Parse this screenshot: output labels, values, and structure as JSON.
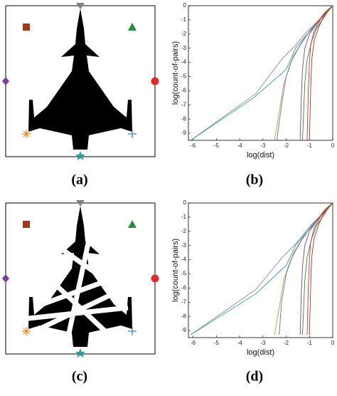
{
  "panel_labels": [
    "(a)",
    "(b)",
    "(c)",
    "(d)"
  ],
  "chart_data": [
    {
      "type": "line",
      "x_label": "log(dist)",
      "y_label": "log(count-of-pairs)",
      "xlim": [
        -6.2,
        0
      ],
      "ylim": [
        -9.5,
        0
      ],
      "xticks": [
        -6,
        -5,
        -4,
        -3,
        -2,
        -1,
        0
      ],
      "yticks": [
        0,
        -1,
        -2,
        -3,
        -4,
        -5,
        -6,
        -7,
        -8,
        -9
      ],
      "series": [
        {
          "color": "#8c8c8c",
          "x": [
            -6.1,
            -3.3,
            -2.2,
            -1.6,
            -1.2,
            -0.9,
            -0.6,
            -0.4,
            -0.2,
            0
          ],
          "values": [
            -9.5,
            -6.2,
            -3.8,
            -2.8,
            -2.0,
            -1.5,
            -1.0,
            -0.6,
            -0.3,
            0
          ]
        },
        {
          "color": "#2a9d9d",
          "x": [
            -6.1,
            -3.4,
            -2.0,
            -1.6,
            -1.2,
            -0.8,
            -0.5,
            -0.3,
            -0.1,
            0
          ],
          "values": [
            -9.5,
            -6.5,
            -4.5,
            -3.0,
            -2.2,
            -1.5,
            -0.9,
            -0.5,
            -0.2,
            0
          ]
        },
        {
          "color": "#f08a1c",
          "x": [
            -2.5,
            -2.3,
            -2.1,
            -1.8,
            -1.4,
            -1.0,
            -0.6,
            -0.3,
            0
          ],
          "values": [
            -9.5,
            -7.5,
            -5.5,
            -4.0,
            -2.8,
            -1.8,
            -1.0,
            -0.4,
            0
          ]
        },
        {
          "color": "#3a7cc4",
          "x": [
            -2.4,
            -2.2,
            -2.0,
            -1.7,
            -1.3,
            -0.9,
            -0.5,
            -0.2,
            0
          ],
          "values": [
            -9.5,
            -7.0,
            -5.0,
            -3.6,
            -2.5,
            -1.6,
            -0.9,
            -0.3,
            0
          ]
        },
        {
          "color": "#7b3fa0",
          "x": [
            -1.4,
            -1.35,
            -1.3,
            -1.2,
            -1.0,
            -0.7,
            -0.4,
            -0.2,
            0
          ],
          "values": [
            -9.5,
            -6.5,
            -4.5,
            -3.0,
            -2.0,
            -1.3,
            -0.7,
            -0.3,
            0
          ]
        },
        {
          "color": "#2e8b3a",
          "x": [
            -1.3,
            -1.2,
            -1.1,
            -0.9,
            -0.7,
            -0.4,
            -0.2,
            0
          ],
          "values": [
            -9.5,
            -5.5,
            -3.8,
            -2.5,
            -1.6,
            -0.9,
            -0.4,
            0
          ]
        },
        {
          "color": "#e02b2b",
          "x": [
            -1.1,
            -1.05,
            -1.0,
            -0.95,
            -0.8,
            -0.6,
            -0.4,
            -0.2,
            0
          ],
          "values": [
            -9.5,
            -6.0,
            -4.0,
            -2.8,
            -1.8,
            -1.2,
            -0.6,
            -0.3,
            0
          ]
        },
        {
          "color": "#9c3b1e",
          "x": [
            -1.0,
            -0.95,
            -0.9,
            -0.8,
            -0.6,
            -0.4,
            -0.2,
            0
          ],
          "values": [
            -9.5,
            -6.0,
            -3.8,
            -2.5,
            -1.5,
            -0.8,
            -0.3,
            0
          ]
        }
      ]
    },
    {
      "type": "line",
      "x_label": "log(dist)",
      "y_label": "log(count-of-pairs)",
      "xlim": [
        -6.2,
        0
      ],
      "ylim": [
        -9.5,
        0
      ],
      "xticks": [
        -6,
        -5,
        -4,
        -3,
        -2,
        -1,
        0
      ],
      "yticks": [
        0,
        -1,
        -2,
        -3,
        -4,
        -5,
        -6,
        -7,
        -8,
        -9
      ],
      "series": [
        {
          "color": "#8c8c8c",
          "x": [
            -6.1,
            -3.3,
            -2.2,
            -1.6,
            -1.2,
            -0.9,
            -0.6,
            -0.4,
            -0.2,
            0
          ],
          "values": [
            -9.3,
            -6.1,
            -3.9,
            -2.9,
            -2.1,
            -1.5,
            -1.0,
            -0.6,
            -0.3,
            0
          ]
        },
        {
          "color": "#2a9d9d",
          "x": [
            -6.1,
            -3.3,
            -2.0,
            -1.6,
            -1.2,
            -0.8,
            -0.5,
            -0.3,
            -0.1,
            0
          ],
          "values": [
            -9.3,
            -6.4,
            -4.4,
            -3.0,
            -2.2,
            -1.5,
            -0.9,
            -0.5,
            -0.2,
            0
          ]
        },
        {
          "color": "#f08a1c",
          "x": [
            -2.5,
            -2.3,
            -2.1,
            -1.8,
            -1.4,
            -1.0,
            -0.6,
            -0.3,
            0
          ],
          "values": [
            -9.3,
            -7.4,
            -5.4,
            -4.0,
            -2.8,
            -1.8,
            -1.0,
            -0.4,
            0
          ]
        },
        {
          "color": "#3a7cc4",
          "x": [
            -2.3,
            -2.2,
            -2.0,
            -1.7,
            -1.3,
            -0.9,
            -0.5,
            -0.2,
            0
          ],
          "values": [
            -9.3,
            -7.0,
            -5.0,
            -3.6,
            -2.5,
            -1.6,
            -0.9,
            -0.3,
            0
          ]
        },
        {
          "color": "#7b3fa0",
          "x": [
            -1.4,
            -1.35,
            -1.3,
            -1.2,
            -1.0,
            -0.7,
            -0.4,
            -0.2,
            0
          ],
          "values": [
            -9.3,
            -6.4,
            -4.5,
            -3.0,
            -2.0,
            -1.3,
            -0.7,
            -0.3,
            0
          ]
        },
        {
          "color": "#2e8b3a",
          "x": [
            -1.3,
            -1.2,
            -1.1,
            -0.9,
            -0.7,
            -0.4,
            -0.2,
            0
          ],
          "values": [
            -9.3,
            -5.5,
            -3.8,
            -2.5,
            -1.6,
            -0.9,
            -0.4,
            0
          ]
        },
        {
          "color": "#e02b2b",
          "x": [
            -1.1,
            -1.05,
            -1.0,
            -0.95,
            -0.8,
            -0.6,
            -0.4,
            -0.2,
            0
          ],
          "values": [
            -9.3,
            -6.0,
            -4.0,
            -2.8,
            -1.8,
            -1.2,
            -0.6,
            -0.3,
            0
          ]
        },
        {
          "color": "#9c3b1e",
          "x": [
            -1.0,
            -0.95,
            -0.9,
            -0.8,
            -0.6,
            -0.4,
            -0.2,
            0
          ],
          "values": [
            -9.3,
            -6.0,
            -3.8,
            -2.5,
            -1.5,
            -0.8,
            -0.3,
            0
          ]
        }
      ]
    }
  ]
}
